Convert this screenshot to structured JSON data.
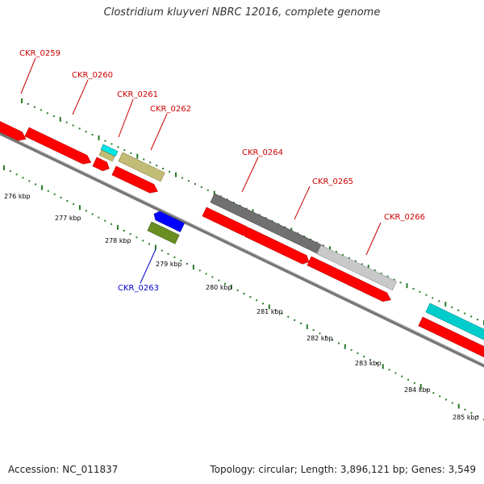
{
  "title": "Clostridium kluyveri NBRC 12016, complete genome",
  "footer": {
    "accession": "Accession: NC_011837",
    "summary": "Topology: circular; Length: 3,896,121 bp; Genes: 3,549"
  },
  "colors": {
    "forward_label": "#cc0000",
    "reverse_label": "#0000cc",
    "backbone": "#888888",
    "tick": "#2a7a2a",
    "cds": "#ff0000",
    "trna_cyan": "#00e5e5",
    "khaki": "#c2bc76",
    "dark_gray": "#707070",
    "light_gray": "#c8c8c8",
    "blue": "#0000ff",
    "olive": "#6b8e23"
  },
  "kbp_ticks": [
    "276 kbp",
    "277 kbp",
    "278 kbp",
    "279 kbp",
    "280 kbp",
    "281 kbp",
    "282 kbp",
    "283 kbp",
    "284 kbp",
    "285 kbp"
  ],
  "genes": [
    {
      "label": "CKR_0259",
      "strand": "forward"
    },
    {
      "label": "CKR_0260",
      "strand": "forward"
    },
    {
      "label": "CKR_0261",
      "strand": "forward"
    },
    {
      "label": "CKR_0262",
      "strand": "forward"
    },
    {
      "label": "CKR_0263",
      "strand": "reverse"
    },
    {
      "label": "CKR_0264",
      "strand": "forward"
    },
    {
      "label": "CKR_0265",
      "strand": "forward"
    },
    {
      "label": "CKR_0266",
      "strand": "forward"
    }
  ]
}
